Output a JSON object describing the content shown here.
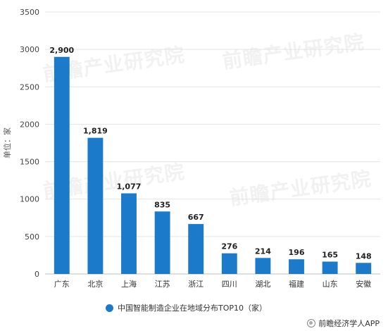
{
  "chart_data": {
    "type": "bar",
    "categories": [
      "广东",
      "北京",
      "上海",
      "江苏",
      "浙江",
      "四川",
      "湖北",
      "福建",
      "山东",
      "安徽"
    ],
    "values": [
      2900,
      1819,
      1077,
      835,
      667,
      276,
      214,
      196,
      165,
      148
    ],
    "data_labels": [
      "2,900",
      "1,819",
      "1,077",
      "835",
      "667",
      "276",
      "214",
      "196",
      "165",
      "148"
    ],
    "ylabel": "单位：家",
    "ylim": [
      0,
      3500
    ],
    "yticks": [
      0,
      500,
      1000,
      1500,
      2000,
      2500,
      3000,
      3500
    ],
    "grid": true,
    "legend_position": "bottom",
    "series_name": "中国智能制造企业在地域分布TOP10（家）",
    "bar_color": "#1c7acb"
  },
  "watermark": "前瞻产业研究院",
  "brand": "前瞻经济学人APP"
}
